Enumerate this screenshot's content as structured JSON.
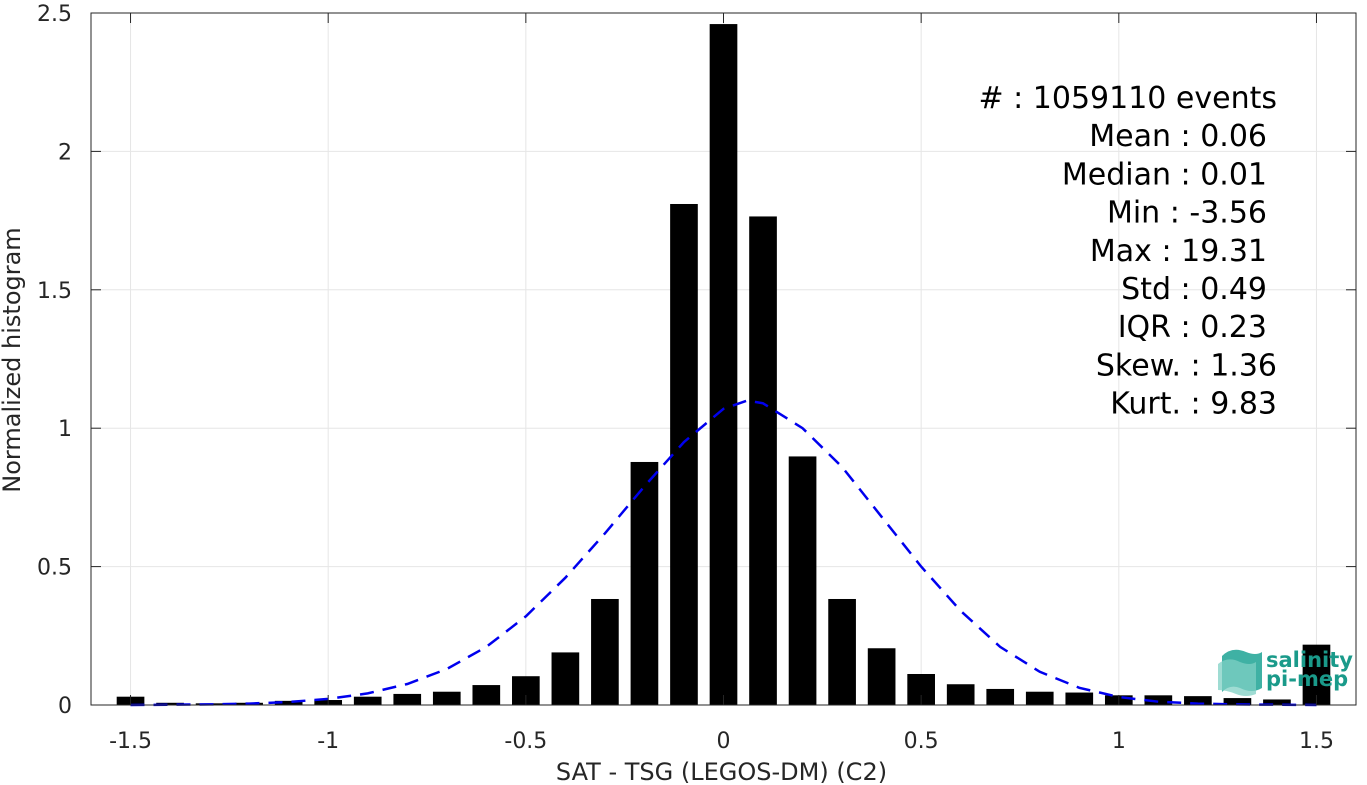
{
  "chart_data": {
    "type": "bar",
    "xlabel": "SAT - TSG (LEGOS-DM) (C2)",
    "ylabel": "Normalized histogram",
    "xlim": [
      -1.6,
      1.6
    ],
    "ylim": [
      0,
      2.5
    ],
    "xticks": [
      -1.5,
      -1,
      -0.5,
      0,
      0.5,
      1,
      1.5
    ],
    "xtick_labels": [
      "-1.5",
      "-1",
      "-0.5",
      "0",
      "0.5",
      "1",
      "1.5"
    ],
    "yticks": [
      0,
      0.5,
      1,
      1.5,
      2,
      2.5
    ],
    "ytick_labels": [
      "0",
      "0.5",
      "1",
      "1.5",
      "2",
      "2.5"
    ],
    "grid": true,
    "bar_color": "#000000",
    "fit_color": "#0000ee",
    "bin_centers": [
      -1.5,
      -1.4,
      -1.3,
      -1.2,
      -1.1,
      -1.0,
      -0.9,
      -0.8,
      -0.7,
      -0.6,
      -0.5,
      -0.4,
      -0.3,
      -0.2,
      -0.1,
      0.0,
      0.1,
      0.2,
      0.3,
      0.4,
      0.5,
      0.6,
      0.7,
      0.8,
      0.9,
      1.0,
      1.1,
      1.2,
      1.3,
      1.4,
      1.5
    ],
    "values": [
      0.03,
      0.008,
      0.006,
      0.008,
      0.015,
      0.018,
      0.03,
      0.04,
      0.048,
      0.072,
      0.104,
      0.19,
      0.383,
      0.878,
      1.81,
      2.46,
      1.765,
      0.898,
      0.383,
      0.205,
      0.112,
      0.075,
      0.058,
      0.048,
      0.045,
      0.035,
      0.035,
      0.032,
      0.025,
      0.02,
      0.218
    ],
    "fit": {
      "style": "dashed",
      "x": [
        -1.5,
        -1.4,
        -1.3,
        -1.2,
        -1.1,
        -1.0,
        -0.9,
        -0.8,
        -0.7,
        -0.6,
        -0.5,
        -0.4,
        -0.3,
        -0.2,
        -0.1,
        0.0,
        0.06,
        0.1,
        0.2,
        0.3,
        0.4,
        0.5,
        0.6,
        0.7,
        0.8,
        0.9,
        1.0,
        1.1,
        1.2,
        1.3,
        1.4,
        1.5
      ],
      "y": [
        0.0,
        0.001,
        0.002,
        0.005,
        0.011,
        0.022,
        0.042,
        0.076,
        0.13,
        0.21,
        0.32,
        0.46,
        0.62,
        0.79,
        0.95,
        1.07,
        1.1,
        1.09,
        1.0,
        0.86,
        0.68,
        0.5,
        0.34,
        0.21,
        0.12,
        0.062,
        0.029,
        0.012,
        0.005,
        0.002,
        0.001,
        0.0
      ]
    },
    "stats": [
      "#  : 1059110 events",
      "Mean : 0.06",
      "Median : 0.01",
      "Min : -3.56",
      "Max : 19.31",
      "Std : 0.49",
      "IQR : 0.23",
      "Skew. : 1.36",
      "Kurt. : 9.83"
    ],
    "logo": {
      "line1": "salinity",
      "line2": "pi-mep"
    }
  }
}
